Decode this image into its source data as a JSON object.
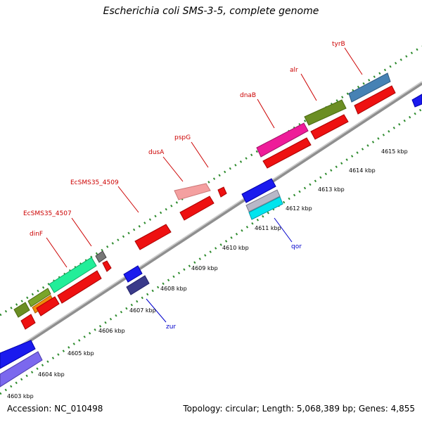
{
  "title": "Escherichia coli SMS-3-5, complete genome",
  "footer": {
    "accession": "Accession: NC_010498",
    "stats": "Topology: circular; Length: 5,068,389 bp; Genes: 4,855"
  },
  "colors": {
    "backbone": "#8a8a8a",
    "dots": "#2e8b2e",
    "label_red": "#cc0000",
    "label_blue": "#0000cc"
  },
  "kbp_ticks": [
    "4603 kbp",
    "4604 kbp",
    "4605 kbp",
    "4606 kbp",
    "4607 kbp",
    "4608 kbp",
    "4609 kbp",
    "4610 kbp",
    "4611 kbp",
    "4612 kbp",
    "4613 kbp",
    "4614 kbp",
    "4615 kbp"
  ],
  "gene_labels": [
    {
      "name": "dinF",
      "color": "red"
    },
    {
      "name": "EcSMS35_4507",
      "color": "red"
    },
    {
      "name": "EcSMS35_4509",
      "color": "red"
    },
    {
      "name": "dusA",
      "color": "red"
    },
    {
      "name": "pspG",
      "color": "red"
    },
    {
      "name": "dnaB",
      "color": "red"
    },
    {
      "name": "alr",
      "color": "red"
    },
    {
      "name": "tyrB",
      "color": "red"
    },
    {
      "name": "qor",
      "color": "blue"
    },
    {
      "name": "zur",
      "color": "blue"
    }
  ]
}
